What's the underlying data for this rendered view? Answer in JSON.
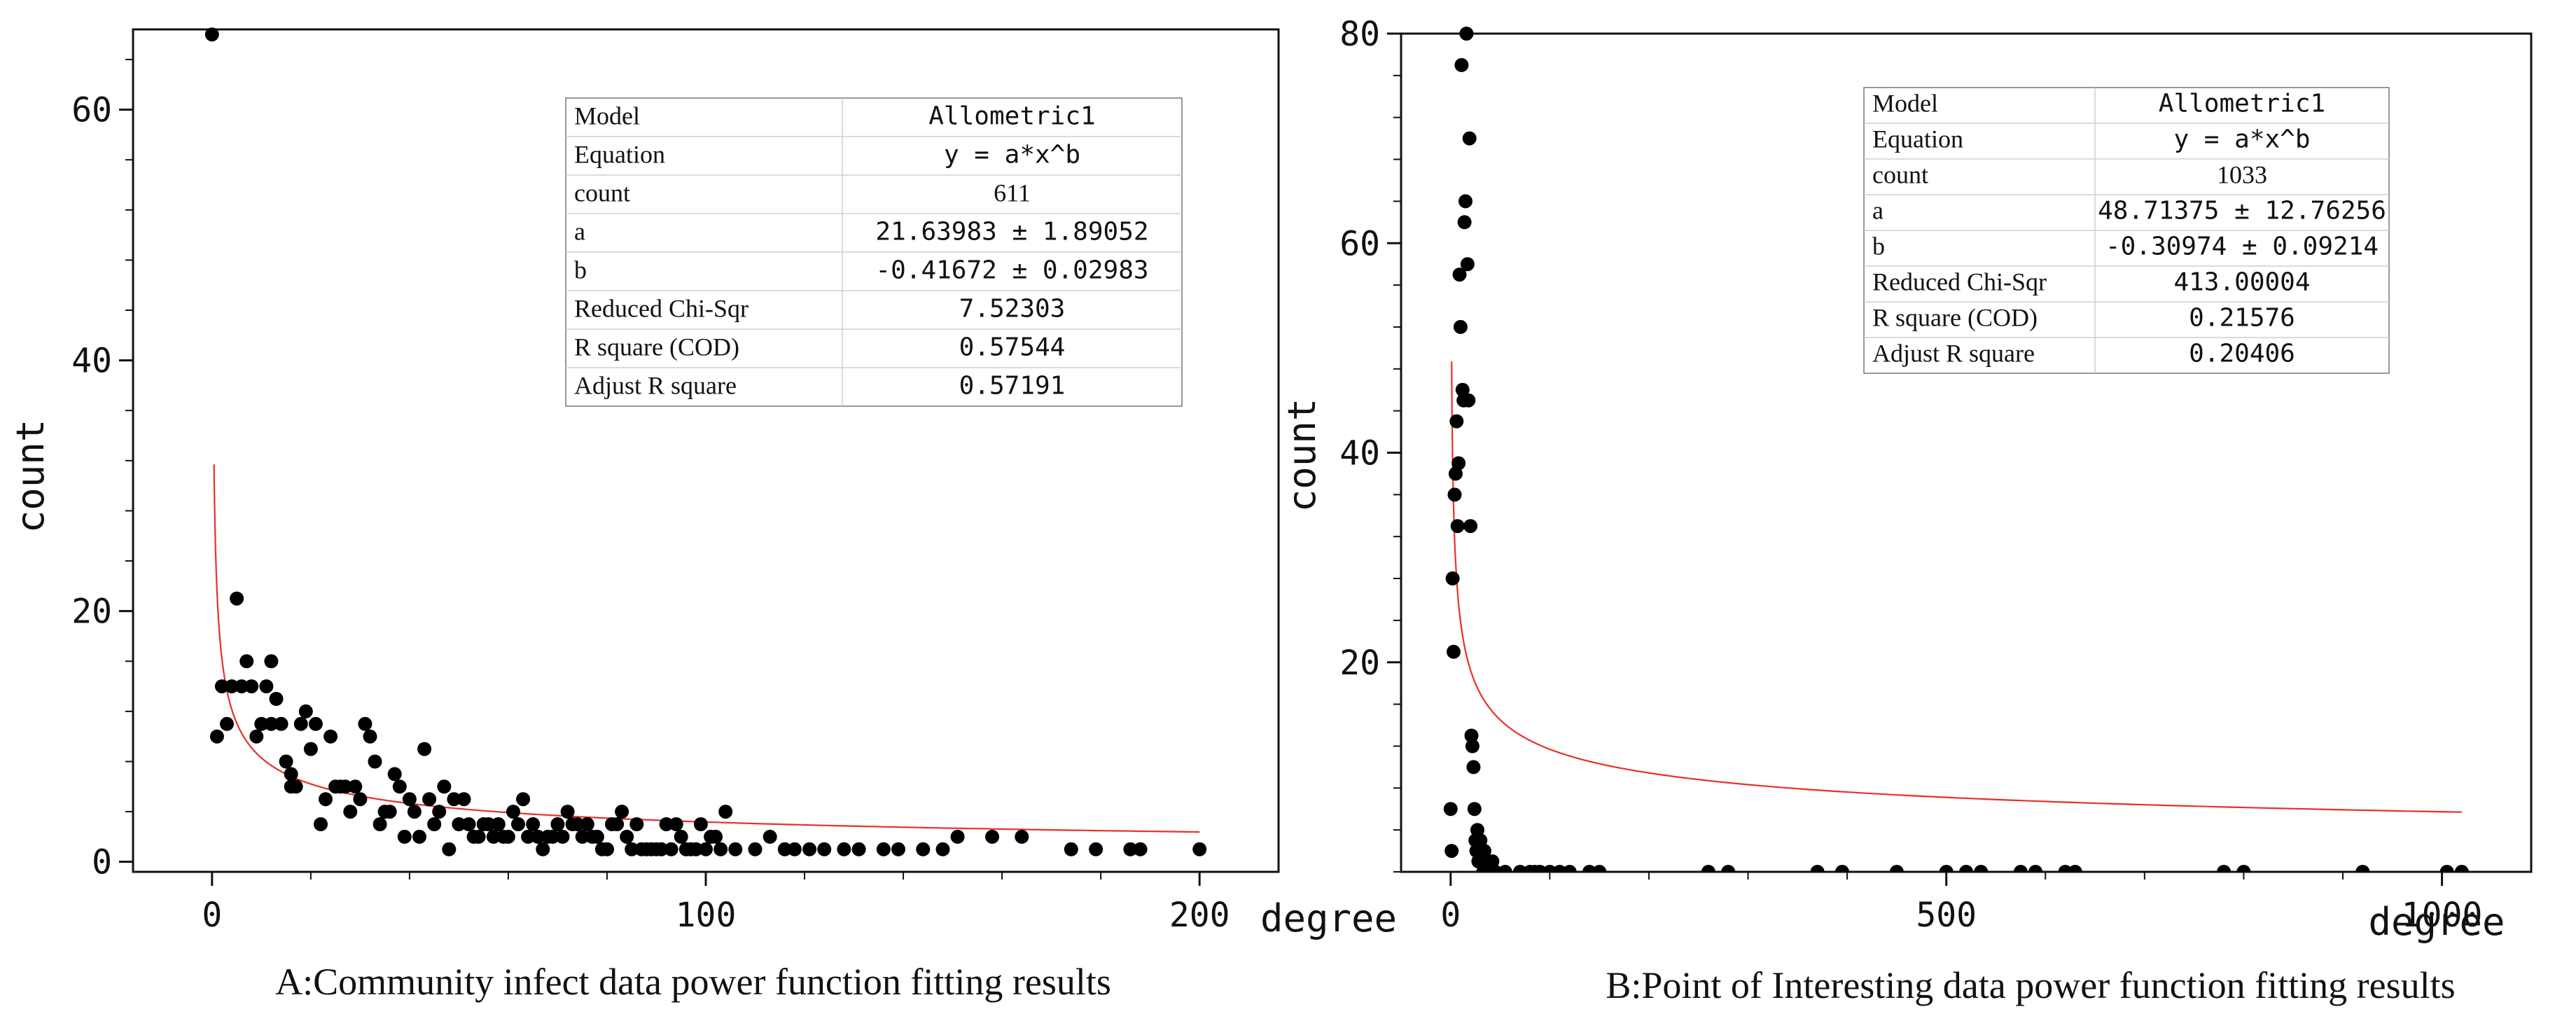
{
  "chart_data": [
    {
      "id": "A",
      "type": "scatter",
      "caption": "A:Community infect data power function fitting results",
      "xlabel": "degree",
      "ylabel": "count",
      "xlim": [
        -16,
        216
      ],
      "ylim": [
        -0.8,
        66.4
      ],
      "xticks": [
        0,
        100,
        200
      ],
      "yticks": [
        0,
        20,
        40,
        60
      ],
      "x_minor_step": 20,
      "y_minor_step": 4,
      "fit": {
        "model": "Allometric1",
        "a": 21.63983,
        "b": -0.41672,
        "x_from": 0.4,
        "x_to": 200,
        "color": "#e8302a"
      },
      "table": [
        {
          "label": "Model",
          "value": "Allometric1"
        },
        {
          "label": "Equation",
          "value": "y = a*x^b"
        },
        {
          "label": "count",
          "value": "611"
        },
        {
          "label": "a",
          "value": "21.63983 ± 1.89052"
        },
        {
          "label": "b",
          "value": "-0.41672 ± 0.02983"
        },
        {
          "label": "Reduced Chi-Sqr",
          "value": "7.52303"
        },
        {
          "label": "R square (COD)",
          "value": "0.57544"
        },
        {
          "label": "Adjust R square",
          "value": "0.57191"
        }
      ],
      "points": [
        [
          0,
          66
        ],
        [
          1,
          10
        ],
        [
          2,
          14
        ],
        [
          3,
          11
        ],
        [
          4,
          14
        ],
        [
          5,
          21
        ],
        [
          6,
          14
        ],
        [
          7,
          16
        ],
        [
          8,
          14
        ],
        [
          9,
          10
        ],
        [
          10,
          11
        ],
        [
          11,
          14
        ],
        [
          12,
          16
        ],
        [
          12,
          11
        ],
        [
          13,
          13
        ],
        [
          14,
          11
        ],
        [
          15,
          8
        ],
        [
          16,
          7
        ],
        [
          16,
          6
        ],
        [
          17,
          6
        ],
        [
          18,
          11
        ],
        [
          19,
          12
        ],
        [
          20,
          9
        ],
        [
          21,
          11
        ],
        [
          22,
          3
        ],
        [
          23,
          5
        ],
        [
          24,
          10
        ],
        [
          25,
          6
        ],
        [
          26,
          6
        ],
        [
          27,
          6
        ],
        [
          28,
          4
        ],
        [
          29,
          6
        ],
        [
          30,
          5
        ],
        [
          31,
          11
        ],
        [
          32,
          10
        ],
        [
          33,
          8
        ],
        [
          34,
          3
        ],
        [
          35,
          4
        ],
        [
          36,
          4
        ],
        [
          37,
          7
        ],
        [
          38,
          6
        ],
        [
          39,
          2
        ],
        [
          40,
          5
        ],
        [
          41,
          4
        ],
        [
          42,
          2
        ],
        [
          43,
          9
        ],
        [
          44,
          5
        ],
        [
          45,
          3
        ],
        [
          46,
          4
        ],
        [
          47,
          6
        ],
        [
          48,
          1
        ],
        [
          49,
          5
        ],
        [
          50,
          3
        ],
        [
          51,
          5
        ],
        [
          52,
          3
        ],
        [
          53,
          2
        ],
        [
          54,
          2
        ],
        [
          55,
          3
        ],
        [
          56,
          3
        ],
        [
          57,
          2
        ],
        [
          58,
          3
        ],
        [
          59,
          2
        ],
        [
          60,
          2
        ],
        [
          61,
          4
        ],
        [
          62,
          3
        ],
        [
          63,
          5
        ],
        [
          64,
          2
        ],
        [
          65,
          3
        ],
        [
          66,
          2
        ],
        [
          67,
          1
        ],
        [
          68,
          2
        ],
        [
          69,
          2
        ],
        [
          70,
          3
        ],
        [
          71,
          2
        ],
        [
          72,
          4
        ],
        [
          73,
          3
        ],
        [
          74,
          3
        ],
        [
          75,
          2
        ],
        [
          76,
          3
        ],
        [
          77,
          2
        ],
        [
          78,
          2
        ],
        [
          79,
          1
        ],
        [
          80,
          1
        ],
        [
          81,
          3
        ],
        [
          82,
          3
        ],
        [
          83,
          4
        ],
        [
          84,
          2
        ],
        [
          85,
          1
        ],
        [
          86,
          3
        ],
        [
          87,
          1
        ],
        [
          88,
          1
        ],
        [
          89,
          1
        ],
        [
          90,
          1
        ],
        [
          91,
          1
        ],
        [
          92,
          3
        ],
        [
          93,
          1
        ],
        [
          94,
          3
        ],
        [
          95,
          2
        ],
        [
          96,
          1
        ],
        [
          97,
          1
        ],
        [
          98,
          1
        ],
        [
          99,
          3
        ],
        [
          100,
          1
        ],
        [
          101,
          2
        ],
        [
          102,
          2
        ],
        [
          103,
          1
        ],
        [
          104,
          4
        ],
        [
          106,
          1
        ],
        [
          110,
          1
        ],
        [
          113,
          2
        ],
        [
          116,
          1
        ],
        [
          118,
          1
        ],
        [
          121,
          1
        ],
        [
          124,
          1
        ],
        [
          128,
          1
        ],
        [
          131,
          1
        ],
        [
          136,
          1
        ],
        [
          139,
          1
        ],
        [
          144,
          1
        ],
        [
          148,
          1
        ],
        [
          151,
          2
        ],
        [
          158,
          2
        ],
        [
          164,
          2
        ],
        [
          174,
          1
        ],
        [
          179,
          1
        ],
        [
          186,
          1
        ],
        [
          188,
          1
        ],
        [
          200,
          1
        ]
      ]
    },
    {
      "id": "B",
      "type": "scatter",
      "caption": "B:Point of Interesting data power function fitting results",
      "xlabel": "degree",
      "ylabel": "count",
      "xlim": [
        -50,
        1090
      ],
      "ylim": [
        0,
        80
      ],
      "xticks": [
        0,
        500,
        1000
      ],
      "yticks": [
        20,
        40,
        60,
        80
      ],
      "x_minor_step": 100,
      "y_minor_step": 4,
      "fit": {
        "model": "Allometric1",
        "a": 48.71375,
        "b": -0.30974,
        "x_from": 1,
        "x_to": 1020,
        "color": "#e8302a"
      },
      "table": [
        {
          "label": "Model",
          "value": "Allometric1"
        },
        {
          "label": "Equation",
          "value": "y = a*x^b"
        },
        {
          "label": "count",
          "value": "1033"
        },
        {
          "label": "a",
          "value": "48.71375 ± 12.76256"
        },
        {
          "label": "b",
          "value": "-0.30974 ± 0.09214"
        },
        {
          "label": "Reduced Chi-Sqr",
          "value": "413.00004"
        },
        {
          "label": "R square (COD)",
          "value": "0.21576"
        },
        {
          "label": "Adjust R square",
          "value": "0.20406"
        }
      ],
      "points": [
        [
          0,
          6
        ],
        [
          1,
          2
        ],
        [
          2,
          28
        ],
        [
          3,
          21
        ],
        [
          4,
          36
        ],
        [
          5,
          38
        ],
        [
          6,
          43
        ],
        [
          7,
          33
        ],
        [
          8,
          39
        ],
        [
          9,
          57
        ],
        [
          10,
          52
        ],
        [
          11,
          77
        ],
        [
          12,
          46
        ],
        [
          13,
          45
        ],
        [
          14,
          62
        ],
        [
          15,
          64
        ],
        [
          16,
          80
        ],
        [
          17,
          58
        ],
        [
          18,
          45
        ],
        [
          19,
          70
        ],
        [
          20,
          33
        ],
        [
          21,
          13
        ],
        [
          22,
          12
        ],
        [
          23,
          10
        ],
        [
          24,
          6
        ],
        [
          25,
          3
        ],
        [
          26,
          2
        ],
        [
          27,
          4
        ],
        [
          28,
          1
        ],
        [
          29,
          2
        ],
        [
          30,
          3
        ],
        [
          31,
          1
        ],
        [
          32,
          2
        ],
        [
          33,
          0
        ],
        [
          34,
          2
        ],
        [
          36,
          1
        ],
        [
          38,
          0
        ],
        [
          42,
          1
        ],
        [
          45,
          0
        ],
        [
          55,
          0
        ],
        [
          70,
          0
        ],
        [
          80,
          0
        ],
        [
          85,
          0
        ],
        [
          90,
          0
        ],
        [
          100,
          0
        ],
        [
          110,
          0
        ],
        [
          120,
          0
        ],
        [
          140,
          0
        ],
        [
          150,
          0
        ],
        [
          260,
          0
        ],
        [
          280,
          0
        ],
        [
          370,
          0
        ],
        [
          395,
          0
        ],
        [
          450,
          0
        ],
        [
          500,
          0
        ],
        [
          520,
          0
        ],
        [
          535,
          0
        ],
        [
          575,
          0
        ],
        [
          590,
          0
        ],
        [
          620,
          0
        ],
        [
          630,
          0
        ],
        [
          780,
          0
        ],
        [
          800,
          0
        ],
        [
          920,
          0
        ],
        [
          1005,
          0
        ],
        [
          1020,
          0
        ]
      ]
    }
  ]
}
